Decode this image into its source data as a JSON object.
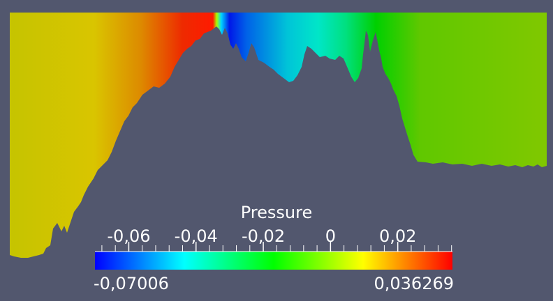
{
  "colorbar": {
    "title": "Pressure",
    "range_min_label": "-0,07006",
    "range_max_label": "0,036269",
    "range": [
      -0.07006,
      0.036269
    ],
    "ticks": [
      {
        "value": -0.06,
        "label": "-0,06"
      },
      {
        "value": -0.04,
        "label": "-0,04"
      },
      {
        "value": -0.02,
        "label": "-0,02"
      },
      {
        "value": 0,
        "label": "0"
      },
      {
        "value": 0.02,
        "label": "0,02"
      }
    ],
    "minor_tick_step": 0.004,
    "colormap": [
      "#0000ff",
      "#00ffff",
      "#00ff00",
      "#ffff00",
      "#ff0000"
    ]
  },
  "colors": {
    "background": "#52576e",
    "text": "#ffffff"
  }
}
